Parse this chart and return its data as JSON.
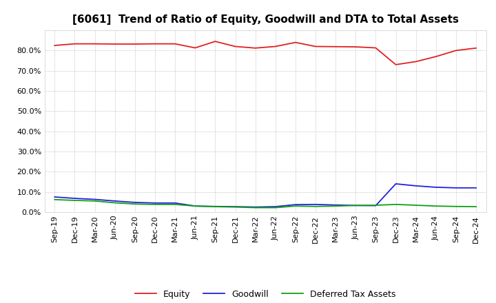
{
  "title": "[6061]  Trend of Ratio of Equity, Goodwill and DTA to Total Assets",
  "labels": [
    "Sep-19",
    "Dec-19",
    "Mar-20",
    "Jun-20",
    "Sep-20",
    "Dec-20",
    "Mar-21",
    "Jun-21",
    "Sep-21",
    "Dec-21",
    "Mar-22",
    "Jun-22",
    "Sep-22",
    "Dec-22",
    "Mar-23",
    "Jun-23",
    "Sep-23",
    "Dec-23",
    "Mar-24",
    "Jun-24",
    "Sep-24",
    "Dec-24"
  ],
  "equity": [
    0.825,
    0.833,
    0.833,
    0.832,
    0.832,
    0.833,
    0.833,
    0.813,
    0.845,
    0.82,
    0.812,
    0.82,
    0.84,
    0.82,
    0.819,
    0.818,
    0.813,
    0.73,
    0.745,
    0.77,
    0.8,
    0.812
  ],
  "goodwill": [
    0.075,
    0.068,
    0.063,
    0.055,
    0.048,
    0.045,
    0.045,
    0.03,
    0.028,
    0.027,
    0.025,
    0.027,
    0.037,
    0.038,
    0.035,
    0.033,
    0.032,
    0.14,
    0.13,
    0.123,
    0.12,
    0.12
  ],
  "dta": [
    0.062,
    0.058,
    0.055,
    0.046,
    0.04,
    0.038,
    0.038,
    0.03,
    0.027,
    0.025,
    0.022,
    0.022,
    0.03,
    0.028,
    0.03,
    0.033,
    0.034,
    0.038,
    0.034,
    0.03,
    0.028,
    0.027
  ],
  "equity_color": "#e02020",
  "goodwill_color": "#2020e0",
  "dta_color": "#10a010",
  "background_color": "#ffffff",
  "plot_bg_color": "#ffffff",
  "grid_color": "#999999",
  "ylim": [
    0.0,
    0.9
  ],
  "yticks": [
    0.0,
    0.1,
    0.2,
    0.3,
    0.4,
    0.5,
    0.6,
    0.7,
    0.8
  ],
  "legend_labels": [
    "Equity",
    "Goodwill",
    "Deferred Tax Assets"
  ],
  "title_fontsize": 11,
  "tick_fontsize": 8,
  "legend_fontsize": 9
}
